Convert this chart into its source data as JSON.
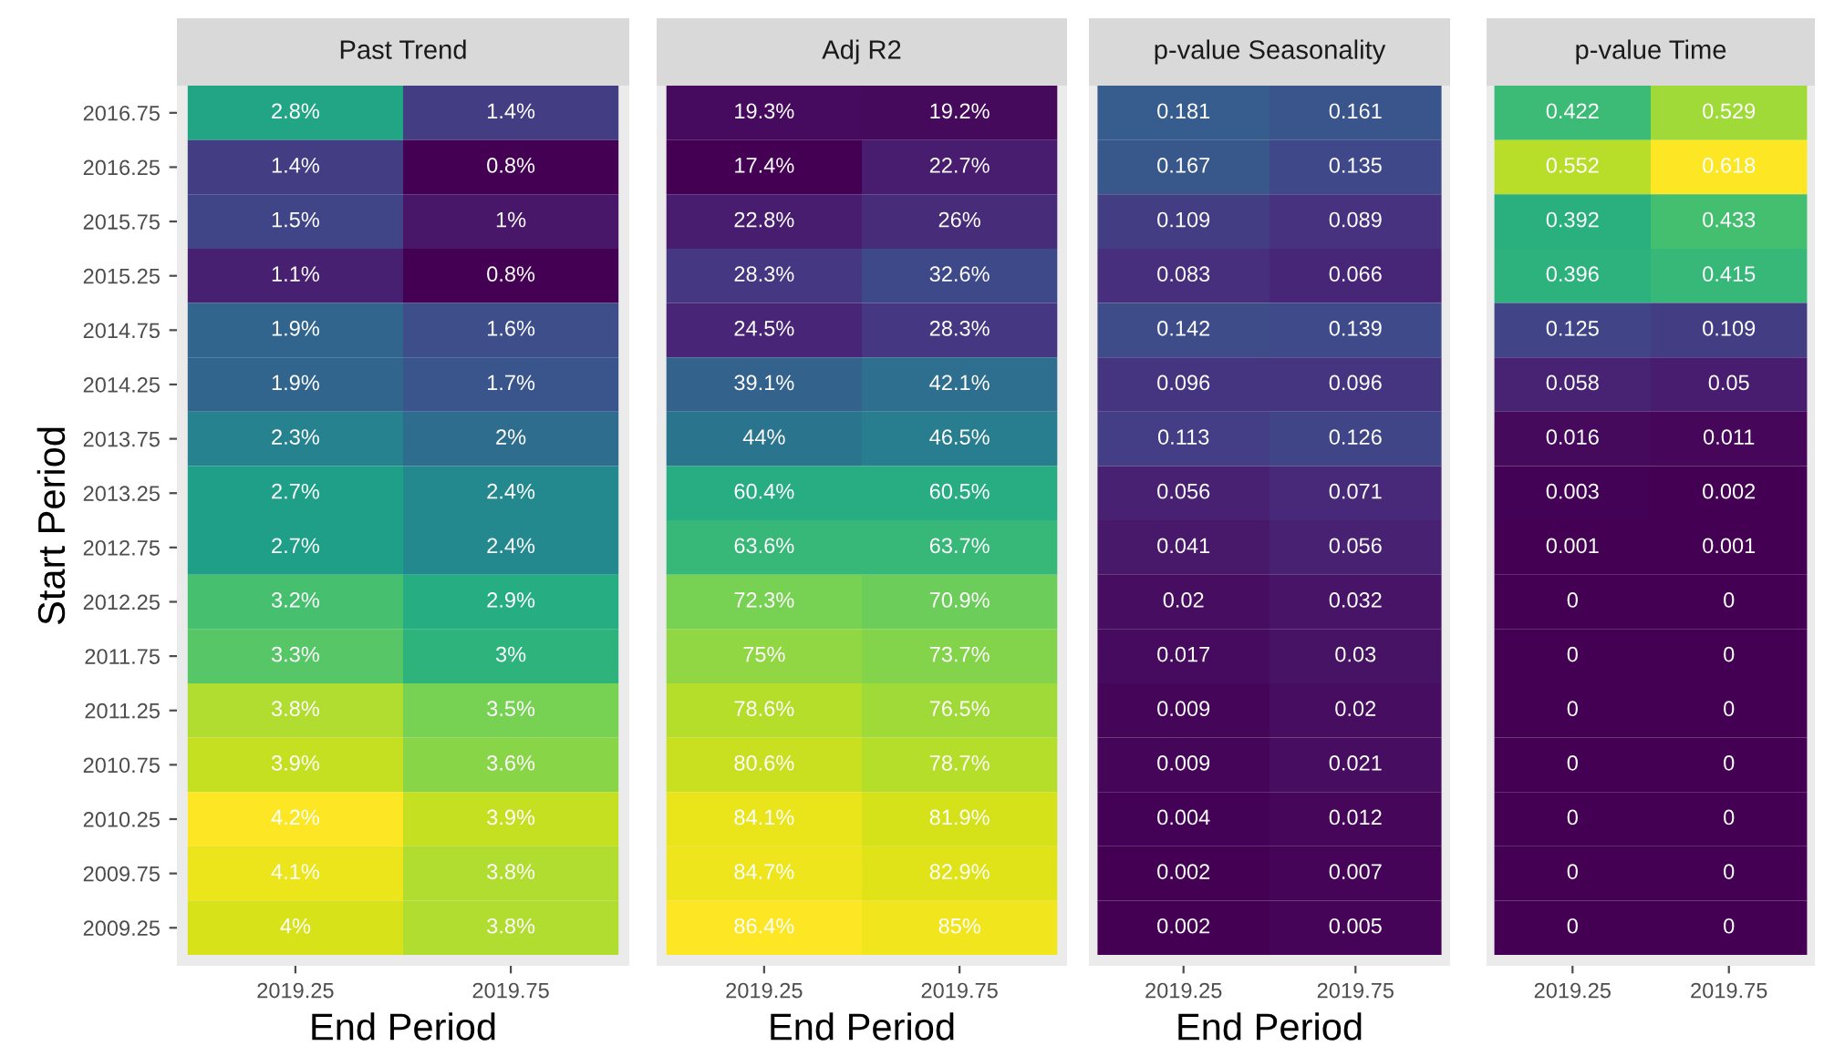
{
  "chart_data": [
    {
      "type": "heatmap",
      "title": "Past Trend",
      "xlabel": "End Period",
      "ylabel": "Start Period",
      "categories": [
        "2019.25",
        "2019.75"
      ],
      "y_categories": [
        "2016.75",
        "2016.25",
        "2015.75",
        "2015.25",
        "2014.75",
        "2014.25",
        "2013.75",
        "2013.25",
        "2012.75",
        "2012.25",
        "2011.75",
        "2011.25",
        "2010.75",
        "2010.25",
        "2009.75",
        "2009.25"
      ],
      "cells": [
        [
          2.8,
          1.4
        ],
        [
          1.4,
          0.8
        ],
        [
          1.5,
          1
        ],
        [
          1.1,
          0.8
        ],
        [
          1.9,
          1.6
        ],
        [
          1.9,
          1.7
        ],
        [
          2.3,
          2
        ],
        [
          2.7,
          2.4
        ],
        [
          2.7,
          2.4
        ],
        [
          3.2,
          2.9
        ],
        [
          3.3,
          3
        ],
        [
          3.8,
          3.5
        ],
        [
          3.9,
          3.6
        ],
        [
          4.2,
          3.9
        ],
        [
          4.1,
          3.8
        ],
        [
          4,
          3.8
        ]
      ],
      "cell_labels": [
        [
          "2.8%",
          "1.4%"
        ],
        [
          "1.4%",
          "0.8%"
        ],
        [
          "1.5%",
          "1%"
        ],
        [
          "1.1%",
          "0.8%"
        ],
        [
          "1.9%",
          "1.6%"
        ],
        [
          "1.9%",
          "1.7%"
        ],
        [
          "2.3%",
          "2%"
        ],
        [
          "2.7%",
          "2.4%"
        ],
        [
          "2.7%",
          "2.4%"
        ],
        [
          "3.2%",
          "2.9%"
        ],
        [
          "3.3%",
          "3%"
        ],
        [
          "3.8%",
          "3.5%"
        ],
        [
          "3.9%",
          "3.6%"
        ],
        [
          "4.2%",
          "3.9%"
        ],
        [
          "4.1%",
          "3.8%"
        ],
        [
          "4%",
          "3.8%"
        ]
      ]
    },
    {
      "type": "heatmap",
      "title": "Adj R2",
      "xlabel": "End Period",
      "tick_labels": "x",
      "categories": [
        "2019.25",
        "2019.75"
      ],
      "y_categories": [
        "2016.75",
        "2016.25",
        "2015.75",
        "2015.25",
        "2014.75",
        "2014.25",
        "2013.75",
        "2013.25",
        "2012.75",
        "2012.25",
        "2011.75",
        "2011.25",
        "2010.75",
        "2010.25",
        "2009.75",
        "2009.25"
      ],
      "cells": [
        [
          19.3,
          19.2
        ],
        [
          17.4,
          22.7
        ],
        [
          22.8,
          26
        ],
        [
          28.3,
          32.6
        ],
        [
          24.5,
          28.3
        ],
        [
          39.1,
          42.1
        ],
        [
          44,
          46.5
        ],
        [
          60.4,
          60.5
        ],
        [
          63.6,
          63.7
        ],
        [
          72.3,
          70.9
        ],
        [
          75,
          73.7
        ],
        [
          78.6,
          76.5
        ],
        [
          80.6,
          78.7
        ],
        [
          84.1,
          81.9
        ],
        [
          84.7,
          82.9
        ],
        [
          86.4,
          85
        ]
      ],
      "cell_labels": [
        [
          "19.3%",
          "19.2%"
        ],
        [
          "17.4%",
          "22.7%"
        ],
        [
          "22.8%",
          "26%"
        ],
        [
          "28.3%",
          "32.6%"
        ],
        [
          "24.5%",
          "28.3%"
        ],
        [
          "39.1%",
          "42.1%"
        ],
        [
          "44%",
          "46.5%"
        ],
        [
          "60.4%",
          "60.5%"
        ],
        [
          "63.6%",
          "63.7%"
        ],
        [
          "72.3%",
          "70.9%"
        ],
        [
          "75%",
          "73.7%"
        ],
        [
          "78.6%",
          "76.5%"
        ],
        [
          "80.6%",
          "78.7%"
        ],
        [
          "84.1%",
          "81.9%"
        ],
        [
          "84.7%",
          "82.9%"
        ],
        [
          "86.4%",
          "85%"
        ]
      ]
    },
    {
      "type": "heatmap",
      "title": "p-value Seasonality",
      "xlabel": "End Period",
      "tick_labels": "x",
      "categories": [
        "2019.25",
        "2019.75"
      ],
      "y_categories": [
        "2016.75",
        "2016.25",
        "2015.75",
        "2015.25",
        "2014.75",
        "2014.25",
        "2013.75",
        "2013.25",
        "2012.75",
        "2012.25",
        "2011.75",
        "2011.25",
        "2010.75",
        "2010.25",
        "2009.75",
        "2009.25"
      ],
      "cells": [
        [
          0.181,
          0.161
        ],
        [
          0.167,
          0.135
        ],
        [
          0.109,
          0.089
        ],
        [
          0.083,
          0.066
        ],
        [
          0.142,
          0.139
        ],
        [
          0.096,
          0.096
        ],
        [
          0.113,
          0.126
        ],
        [
          0.056,
          0.071
        ],
        [
          0.041,
          0.056
        ],
        [
          0.02,
          0.032
        ],
        [
          0.017,
          0.03
        ],
        [
          0.009,
          0.02
        ],
        [
          0.009,
          0.021
        ],
        [
          0.004,
          0.012
        ],
        [
          0.002,
          0.007
        ],
        [
          0.002,
          0.005
        ]
      ],
      "cell_labels": [
        [
          "0.181",
          "0.161"
        ],
        [
          "0.167",
          "0.135"
        ],
        [
          "0.109",
          "0.089"
        ],
        [
          "0.083",
          "0.066"
        ],
        [
          "0.142",
          "0.139"
        ],
        [
          "0.096",
          "0.096"
        ],
        [
          "0.113",
          "0.126"
        ],
        [
          "0.056",
          "0.071"
        ],
        [
          "0.041",
          "0.056"
        ],
        [
          "0.02",
          "0.032"
        ],
        [
          "0.017",
          "0.03"
        ],
        [
          "0.009",
          "0.02"
        ],
        [
          "0.009",
          "0.021"
        ],
        [
          "0.004",
          "0.012"
        ],
        [
          "0.002",
          "0.007"
        ],
        [
          "0.002",
          "0.005"
        ]
      ]
    },
    {
      "type": "heatmap",
      "title": "p-value Time",
      "tick_labels": "x",
      "categories": [
        "2019.25",
        "2019.75"
      ],
      "y_categories": [
        "2016.75",
        "2016.25",
        "2015.75",
        "2015.25",
        "2014.75",
        "2014.25",
        "2013.75",
        "2013.25",
        "2012.75",
        "2012.25",
        "2011.75",
        "2011.25",
        "2010.75",
        "2010.25",
        "2009.75",
        "2009.25"
      ],
      "cells": [
        [
          0.422,
          0.529
        ],
        [
          0.552,
          0.618
        ],
        [
          0.392,
          0.433
        ],
        [
          0.396,
          0.415
        ],
        [
          0.125,
          0.109
        ],
        [
          0.058,
          0.05
        ],
        [
          0.016,
          0.011
        ],
        [
          0.003,
          0.002
        ],
        [
          0.001,
          0.001
        ],
        [
          0,
          0
        ],
        [
          0,
          0
        ],
        [
          0,
          0
        ],
        [
          0,
          0
        ],
        [
          0,
          0
        ],
        [
          0,
          0
        ],
        [
          0,
          0
        ]
      ],
      "cell_labels": [
        [
          "0.422",
          "0.529"
        ],
        [
          "0.552",
          "0.618"
        ],
        [
          "0.392",
          "0.433"
        ],
        [
          "0.396",
          "0.415"
        ],
        [
          "0.125",
          "0.109"
        ],
        [
          "0.058",
          "0.05"
        ],
        [
          "0.016",
          "0.011"
        ],
        [
          "0.003",
          "0.002"
        ],
        [
          "0.001",
          "0.001"
        ],
        [
          "0",
          "0"
        ],
        [
          "0",
          "0"
        ],
        [
          "0",
          "0"
        ],
        [
          "0",
          "0"
        ],
        [
          "0",
          "0"
        ],
        [
          "0",
          "0"
        ],
        [
          "0",
          "0"
        ]
      ]
    }
  ]
}
